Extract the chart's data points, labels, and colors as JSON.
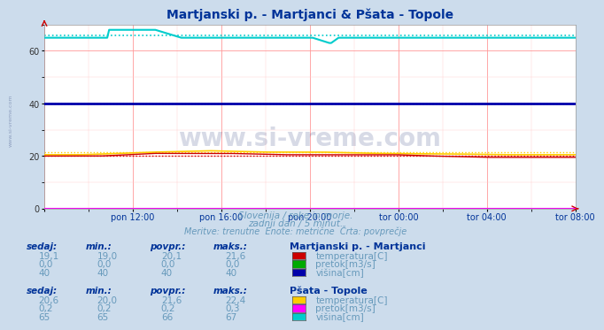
{
  "title": "Martjanski p. - Martjanci & Pšata - Topole",
  "title_color": "#003399",
  "bg_color": "#ccdcec",
  "plot_bg_color": "#ffffff",
  "grid_color_major": "#ff9999",
  "grid_color_minor": "#ffcccc",
  "xlabel_ticks": [
    "pon 12:00",
    "pon 16:00",
    "pon 20:00",
    "tor 00:00",
    "tor 04:00",
    "tor 08:00"
  ],
  "ylim": [
    0,
    70
  ],
  "yticks": [
    0,
    20,
    40,
    60
  ],
  "subtitle1": "Slovenija / reke in morje.",
  "subtitle2": "zadnji dan / 5 minut.",
  "subtitle3": "Meritve: trenutne  Enote: metrične  Črta: povprečje",
  "subtitle_color": "#6699bb",
  "watermark": "www.si-vreme.com",
  "watermark_color": "#2244aa",
  "side_label": "www.si-vreme.com",
  "mart_temp_color": "#cc0000",
  "mart_pretok_color": "#00aa00",
  "mart_visina_color": "#0000aa",
  "psata_temp_color": "#ffcc00",
  "psata_pretok_color": "#ff00ff",
  "psata_visina_color": "#00cccc",
  "table1_header": [
    "sedaj:",
    "min.:",
    "povpr.:",
    "maks.:"
  ],
  "table1_title": "Martjanski p. - Martjanci",
  "table1_rows": [
    [
      "19,1",
      "19,0",
      "20,1",
      "21,6",
      "#cc0000",
      "temperatura[C]"
    ],
    [
      "0,0",
      "0,0",
      "0,0",
      "0,0",
      "#00aa00",
      "pretok[m3/s]"
    ],
    [
      "40",
      "40",
      "40",
      "40",
      "#0000aa",
      "višina[cm]"
    ]
  ],
  "table2_title": "Pšata - Topole",
  "table2_rows": [
    [
      "20,6",
      "20,0",
      "21,6",
      "22,4",
      "#ffcc00",
      "temperatura[C]"
    ],
    [
      "0,2",
      "0,2",
      "0,2",
      "0,3",
      "#ff00ff",
      "pretok[m3/s]"
    ],
    [
      "65",
      "65",
      "66",
      "67",
      "#00cccc",
      "višina[cm]"
    ]
  ],
  "text_color_dark": "#003399",
  "text_color_label": "#6699bb"
}
